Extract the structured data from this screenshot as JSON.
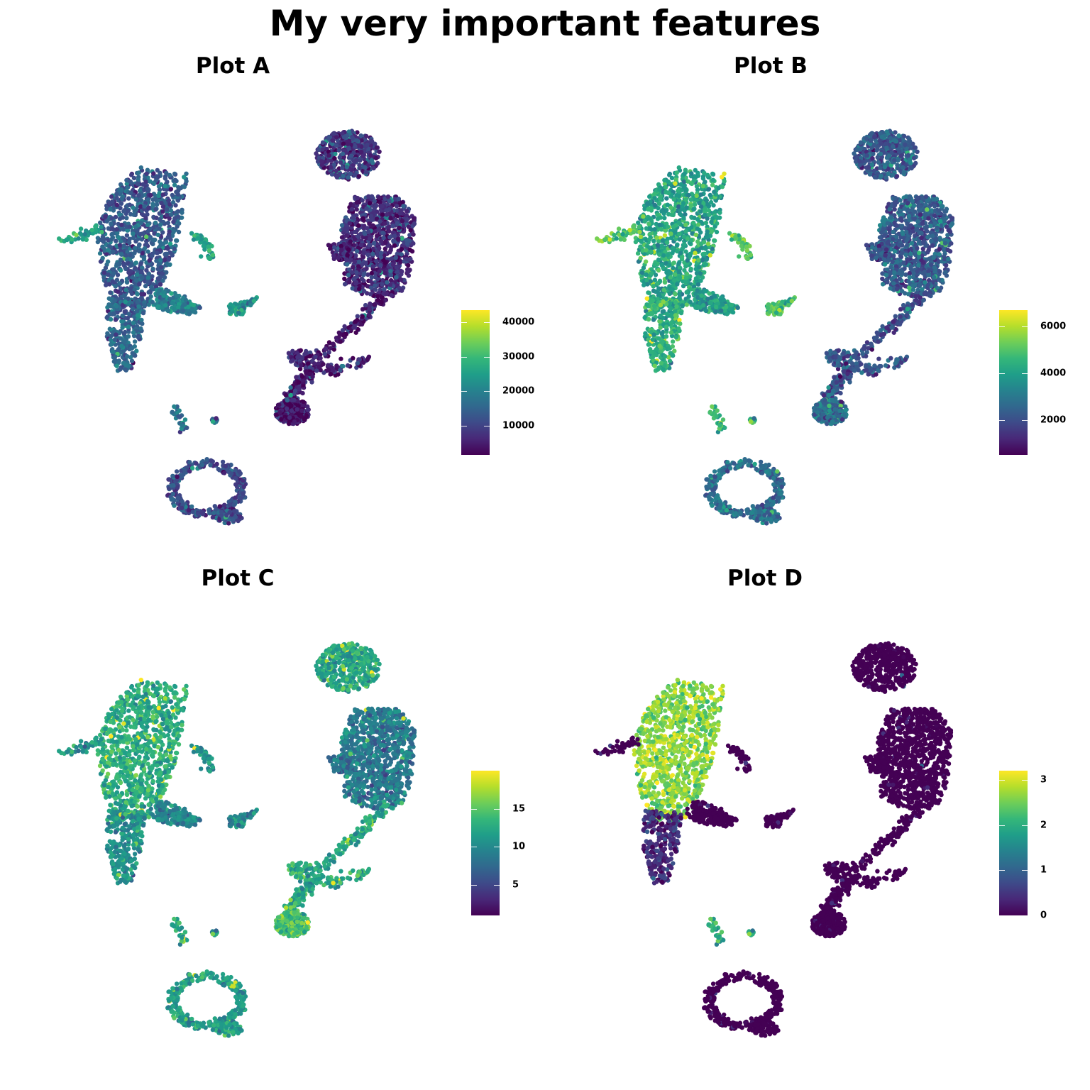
{
  "title": "My very important features",
  "colormap": [
    "#440154",
    "#482878",
    "#3e4a89",
    "#31688e",
    "#26828e",
    "#1f9e89",
    "#35b779",
    "#6ece58",
    "#b5de2b",
    "#fde725"
  ],
  "chart_data": [
    {
      "type": "scatter",
      "title": "Plot A",
      "legend_position": "right",
      "grid": false,
      "colorbar": {
        "min": 1500,
        "max": 43500,
        "ticks": [
          10000,
          20000,
          30000,
          40000
        ],
        "tick_labels": [
          "10000",
          "20000",
          "30000",
          "40000"
        ]
      },
      "cluster_levels": {
        "upper_left": 0.28,
        "left_lower": 0.33,
        "mid_branch": 0.42,
        "small_bits": 0.55,
        "top_right": 0.17,
        "right_body": 0.12,
        "right_tail": 0.08,
        "bottom_left_tip": 0.05,
        "bottom_ring": 0.22,
        "small_top": 0.35
      }
    },
    {
      "type": "scatter",
      "title": "Plot B",
      "legend_position": "right",
      "grid": false,
      "colorbar": {
        "min": 500,
        "max": 6700,
        "ticks": [
          2000,
          4000,
          6000
        ],
        "tick_labels": [
          "2000",
          "4000",
          "6000"
        ]
      },
      "cluster_levels": {
        "upper_left": 0.58,
        "left_lower": 0.62,
        "mid_branch": 0.55,
        "small_bits": 0.72,
        "top_right": 0.28,
        "right_body": 0.28,
        "right_tail": 0.25,
        "bottom_left_tip": 0.35,
        "bottom_ring": 0.35,
        "small_top": 0.65
      }
    },
    {
      "type": "scatter",
      "title": "Plot C",
      "legend_position": "right",
      "grid": false,
      "colorbar": {
        "min": 1,
        "max": 20,
        "ticks": [
          5,
          10,
          15
        ],
        "tick_labels": [
          "5",
          "10",
          "15"
        ]
      },
      "cluster_levels": {
        "upper_left": 0.62,
        "left_lower": 0.5,
        "mid_branch": 0.45,
        "small_bits": 0.5,
        "top_right": 0.6,
        "right_body": 0.4,
        "right_tail": 0.6,
        "bottom_left_tip": 0.7,
        "bottom_ring": 0.55,
        "small_top": 0.55
      }
    },
    {
      "type": "scatter",
      "title": "Plot D",
      "legend_position": "right",
      "grid": false,
      "colorbar": {
        "min": 0,
        "max": 3.2,
        "ticks": [
          0,
          1,
          2,
          3
        ],
        "tick_labels": [
          "0",
          "1",
          "2",
          "3"
        ]
      },
      "cluster_levels": {
        "upper_left": 0.82,
        "left_lower": 0.12,
        "mid_branch": 0.03,
        "small_bits": 0.02,
        "top_right": 0.0,
        "right_body": 0.02,
        "right_tail": 0.02,
        "bottom_left_tip": 0.06,
        "bottom_ring": 0.01,
        "small_top": 0.6
      }
    }
  ]
}
